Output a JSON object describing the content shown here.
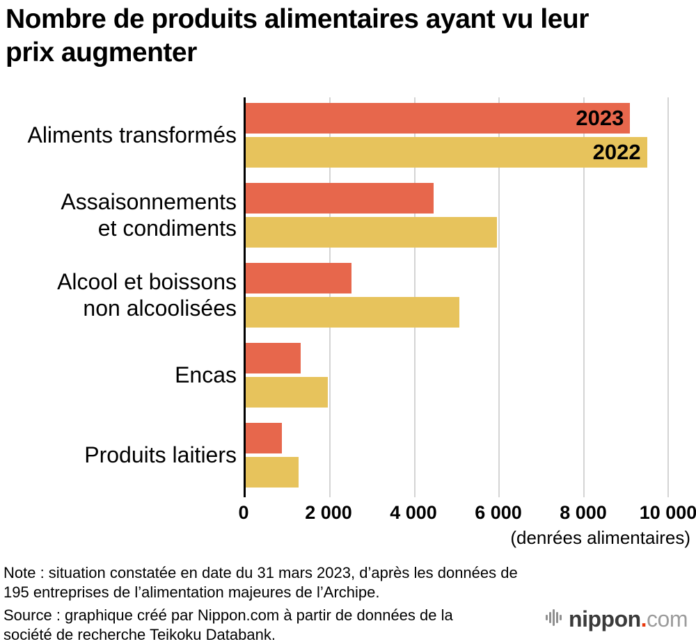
{
  "title": "Nombre de produits alimentaires ayant vu leur prix augmenter",
  "chart_data": {
    "type": "bar",
    "orientation": "horizontal",
    "title": "Nombre de produits alimentaires ayant vu leur prix augmenter",
    "categories": [
      {
        "label": "Aliments transformés",
        "lines": [
          "Aliments transformés"
        ]
      },
      {
        "label": "Assaisonnements et condiments",
        "lines": [
          "Assaisonnements",
          "et condiments"
        ]
      },
      {
        "label": "Alcool et boissons non alcoolisées",
        "lines": [
          "Alcool et boissons",
          "non alcoolisées"
        ]
      },
      {
        "label": "Encas",
        "lines": [
          "Encas"
        ]
      },
      {
        "label": "Produits laitiers",
        "lines": [
          "Produits laitiers"
        ]
      }
    ],
    "series": [
      {
        "name": "2023",
        "color": "#e7674c",
        "values": [
          9100,
          4450,
          2500,
          1300,
          850
        ]
      },
      {
        "name": "2022",
        "color": "#e7c35c",
        "values": [
          9500,
          5950,
          5050,
          1950,
          1250
        ]
      }
    ],
    "xlim": [
      0,
      10000
    ],
    "xticks": [
      0,
      2000,
      4000,
      6000,
      8000,
      10000
    ],
    "xtick_labels": [
      "0",
      "2 000",
      "4 000",
      "6 000",
      "8 000",
      "10 000"
    ],
    "xlabel": "(denrées alimentaires)",
    "grid": true,
    "legend_position": "inside-first-bars",
    "colors": {
      "series_2023": "#e7674c",
      "series_2022": "#e7c35c",
      "gridline": "#d4d4d4",
      "axis": "#000000"
    }
  },
  "notes": {
    "lines": [
      "Note : situation constatée en date du 31 mars 2023, d’après les données de",
      "195 entreprises de l’alimentation majeures de l’Archipe.",
      "Source : graphique créé par Nippon.com à partir de données de la",
      "société de recherche Teikoku Databank."
    ]
  },
  "logo": {
    "brand": "nippon",
    "dot": ".",
    "tld": "com"
  }
}
